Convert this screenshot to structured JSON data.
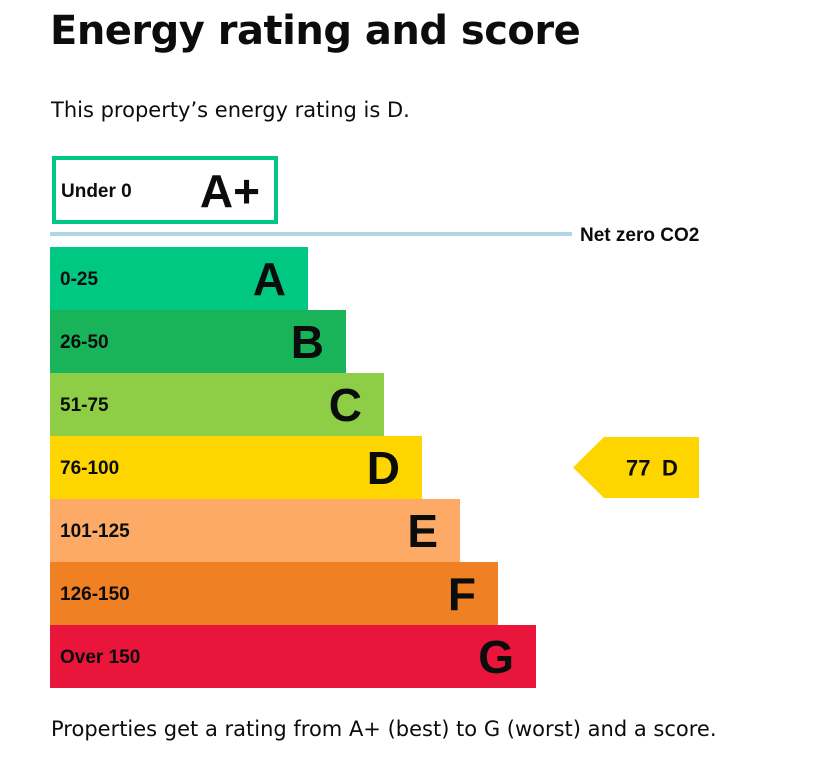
{
  "page": {
    "title": "Energy rating and score",
    "intro": "This property’s energy rating is D.",
    "footer": "Properties get a rating from A+ (best) to G (worst) and a score."
  },
  "chart_data": {
    "type": "bar",
    "title": "",
    "bands": [
      {
        "letter": "A+",
        "range": "Under 0",
        "color": "#00c781",
        "style": "outline"
      },
      {
        "letter": "A",
        "range": "0-25",
        "color": "#00c781"
      },
      {
        "letter": "B",
        "range": "26-50",
        "color": "#19b459"
      },
      {
        "letter": "C",
        "range": "51-75",
        "color": "#8dce46"
      },
      {
        "letter": "D",
        "range": "76-100",
        "color": "#ffd500"
      },
      {
        "letter": "E",
        "range": "101-125",
        "color": "#fcaa65"
      },
      {
        "letter": "F",
        "range": "126-150",
        "color": "#ef8023"
      },
      {
        "letter": "G",
        "range": "Over 150",
        "color": "#e9153b"
      }
    ],
    "net_zero": {
      "label": "Net zero CO2",
      "color": "#aed6e3"
    },
    "current": {
      "score": 77,
      "score_text": "77",
      "rating": "D",
      "color": "#ffd500"
    }
  }
}
